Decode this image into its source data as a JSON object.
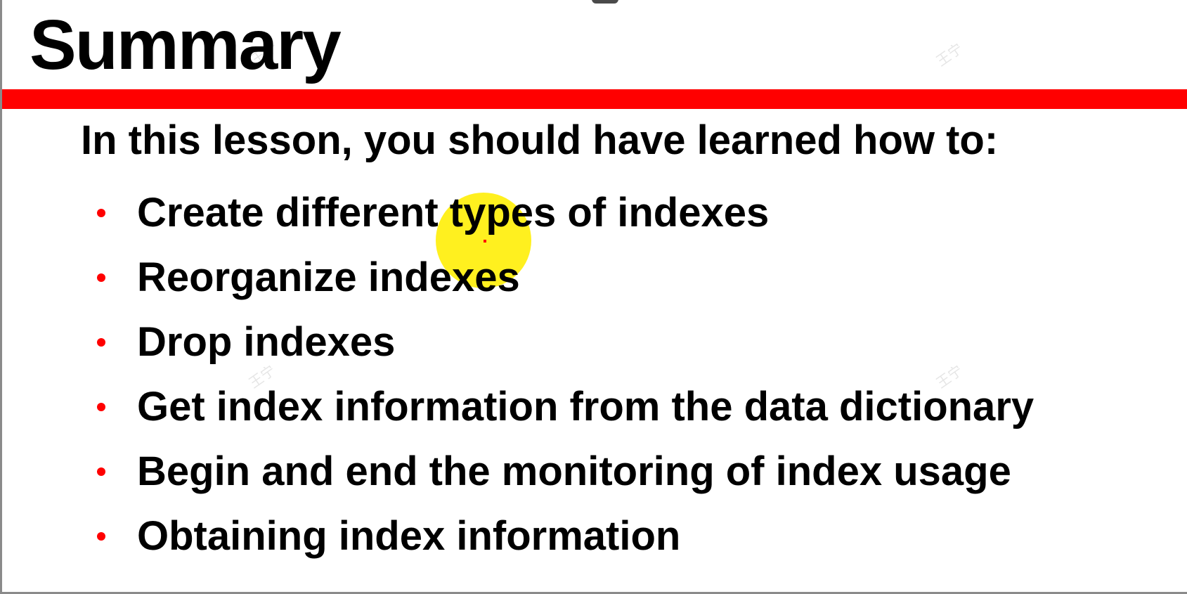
{
  "slide": {
    "title": "Summary",
    "intro": "In this lesson, you should have learned how to:",
    "bullets": [
      "Create different types of indexes",
      "Reorganize indexes",
      "Drop indexes",
      "Get index information from the data dictionary",
      "Begin and end the monitoring of index usage",
      "Obtaining index information"
    ],
    "watermark": "王宁"
  },
  "colors": {
    "accent": "#ff0000",
    "pointer_highlight": "#ffee00",
    "text": "#000000",
    "background": "#ffffff"
  }
}
